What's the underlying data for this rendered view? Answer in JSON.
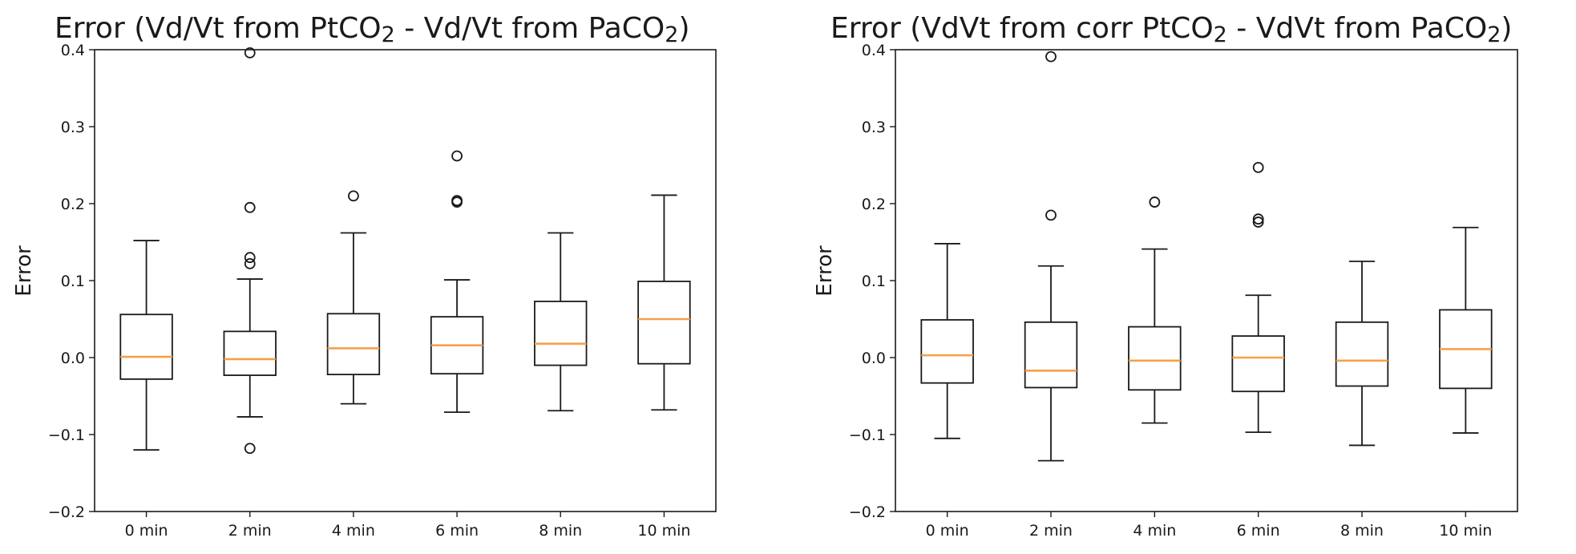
{
  "chart_data": [
    {
      "type": "boxplot",
      "title_parts": [
        "Error (Vd/Vt from PtCO",
        "2",
        " - Vd/Vt from PaCO",
        "2",
        ")"
      ],
      "ylabel": "Error",
      "xlabel": "",
      "ylim": [
        -0.2,
        0.4
      ],
      "yticks": [
        -0.2,
        -0.1,
        0.0,
        0.1,
        0.2,
        0.3,
        0.4
      ],
      "ytick_labels": [
        "−0.2",
        "−0.1",
        "0.0",
        "0.1",
        "0.2",
        "0.3",
        "0.4"
      ],
      "categories": [
        "0 min",
        "2 min",
        "4 min",
        "6 min",
        "8 min",
        "10 min"
      ],
      "boxes": [
        {
          "whislo": -0.12,
          "q1": -0.028,
          "med": 0.001,
          "q3": 0.056,
          "whishi": 0.152,
          "fliers": []
        },
        {
          "whislo": -0.077,
          "q1": -0.023,
          "med": -0.002,
          "q3": 0.034,
          "whishi": 0.102,
          "fliers": [
            0.396,
            0.195,
            0.13,
            0.122,
            -0.118
          ]
        },
        {
          "whislo": -0.06,
          "q1": -0.022,
          "med": 0.012,
          "q3": 0.057,
          "whishi": 0.162,
          "fliers": [
            0.21
          ]
        },
        {
          "whislo": -0.071,
          "q1": -0.021,
          "med": 0.016,
          "q3": 0.053,
          "whishi": 0.101,
          "fliers": [
            0.262,
            0.204,
            0.202
          ]
        },
        {
          "whislo": -0.069,
          "q1": -0.01,
          "med": 0.018,
          "q3": 0.073,
          "whishi": 0.162,
          "fliers": []
        },
        {
          "whislo": -0.068,
          "q1": -0.008,
          "med": 0.05,
          "q3": 0.099,
          "whishi": 0.211,
          "fliers": []
        }
      ]
    },
    {
      "type": "boxplot",
      "title_parts": [
        "Error (VdVt from corr PtCO",
        "2",
        " - VdVt from PaCO",
        "2",
        ")"
      ],
      "ylabel": "Error",
      "xlabel": "",
      "ylim": [
        -0.2,
        0.4
      ],
      "yticks": [
        -0.2,
        -0.1,
        0.0,
        0.1,
        0.2,
        0.3,
        0.4
      ],
      "ytick_labels": [
        "−0.2",
        "−0.1",
        "0.0",
        "0.1",
        "0.2",
        "0.3",
        "0.4"
      ],
      "categories": [
        "0 min",
        "2 min",
        "4 min",
        "6 min",
        "8 min",
        "10 min"
      ],
      "boxes": [
        {
          "whislo": -0.105,
          "q1": -0.033,
          "med": 0.003,
          "q3": 0.049,
          "whishi": 0.148,
          "fliers": []
        },
        {
          "whislo": -0.134,
          "q1": -0.039,
          "med": -0.017,
          "q3": 0.046,
          "whishi": 0.119,
          "fliers": [
            0.391,
            0.185
          ]
        },
        {
          "whislo": -0.085,
          "q1": -0.042,
          "med": -0.004,
          "q3": 0.04,
          "whishi": 0.141,
          "fliers": [
            0.202
          ]
        },
        {
          "whislo": -0.097,
          "q1": -0.044,
          "med": 0.0,
          "q3": 0.028,
          "whishi": 0.081,
          "fliers": [
            0.247,
            0.18,
            0.176
          ]
        },
        {
          "whislo": -0.114,
          "q1": -0.037,
          "med": -0.004,
          "q3": 0.046,
          "whishi": 0.125,
          "fliers": []
        },
        {
          "whislo": -0.098,
          "q1": -0.04,
          "med": 0.011,
          "q3": 0.062,
          "whishi": 0.169,
          "fliers": []
        }
      ]
    }
  ]
}
